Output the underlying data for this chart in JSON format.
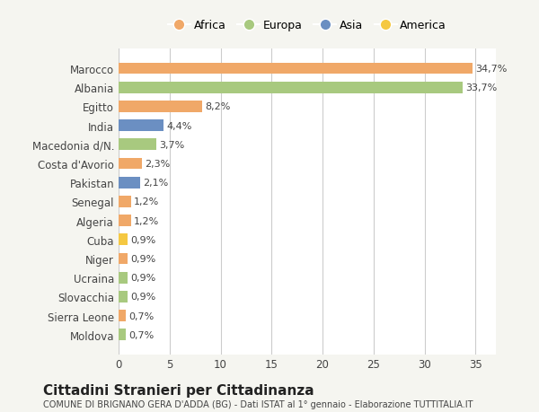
{
  "categories": [
    "Moldova",
    "Sierra Leone",
    "Slovacchia",
    "Ucraina",
    "Niger",
    "Cuba",
    "Algeria",
    "Senegal",
    "Pakistan",
    "Costa d'Avorio",
    "Macedonia d/N.",
    "India",
    "Egitto",
    "Albania",
    "Marocco"
  ],
  "values": [
    0.7,
    0.7,
    0.9,
    0.9,
    0.9,
    0.9,
    1.2,
    1.2,
    2.1,
    2.3,
    3.7,
    4.4,
    8.2,
    33.7,
    34.7
  ],
  "labels": [
    "0,7%",
    "0,7%",
    "0,9%",
    "0,9%",
    "0,9%",
    "0,9%",
    "1,2%",
    "1,2%",
    "2,1%",
    "2,3%",
    "3,7%",
    "4,4%",
    "8,2%",
    "33,7%",
    "34,7%"
  ],
  "colors": [
    "#a8c97f",
    "#f0a868",
    "#a8c97f",
    "#a8c97f",
    "#f0a868",
    "#f5c842",
    "#f0a868",
    "#f0a868",
    "#6b8fc2",
    "#f0a868",
    "#a8c97f",
    "#6b8fc2",
    "#f0a868",
    "#a8c97f",
    "#f0a868"
  ],
  "legend_labels": [
    "Africa",
    "Europa",
    "Asia",
    "America"
  ],
  "legend_colors": [
    "#f0a868",
    "#a8c97f",
    "#6b8fc2",
    "#f5c842"
  ],
  "title": "Cittadini Stranieri per Cittadinanza",
  "subtitle": "COMUNE DI BRIGNANO GERA D'ADDA (BG) - Dati ISTAT al 1° gennaio - Elaborazione TUTTITALIA.IT",
  "xlim": [
    0,
    37
  ],
  "xticks": [
    0,
    5,
    10,
    15,
    20,
    25,
    30,
    35
  ],
  "background_color": "#f5f5f0",
  "bar_bg_color": "#ffffff"
}
